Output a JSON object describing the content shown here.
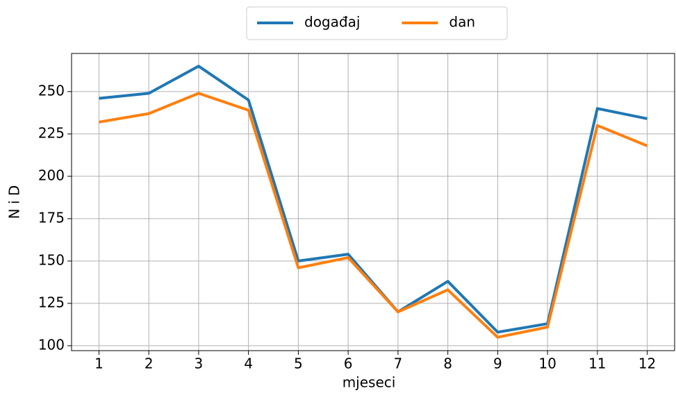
{
  "chart_data": {
    "type": "line",
    "x_label": "mjeseci",
    "y_label": "N i D",
    "x": [
      1,
      2,
      3,
      4,
      5,
      6,
      7,
      8,
      9,
      10,
      11,
      12
    ],
    "series": [
      {
        "name": "događaj",
        "color": "#1f77b4",
        "values": [
          246,
          249,
          265,
          245,
          150,
          154,
          120,
          138,
          108,
          113,
          240,
          234
        ]
      },
      {
        "name": "dan",
        "color": "#ff7f0e",
        "values": [
          232,
          237,
          249,
          239,
          146,
          152,
          120,
          133,
          105,
          111,
          230,
          218
        ]
      }
    ],
    "xlim": [
      0.45,
      12.55
    ],
    "xticks": [
      1,
      2,
      3,
      4,
      5,
      6,
      7,
      8,
      9,
      10,
      11,
      12
    ],
    "ylim": [
      97.1,
      272.5
    ],
    "yticks": [
      100,
      125,
      150,
      175,
      200,
      225,
      250
    ],
    "grid": true,
    "legend": "top"
  }
}
